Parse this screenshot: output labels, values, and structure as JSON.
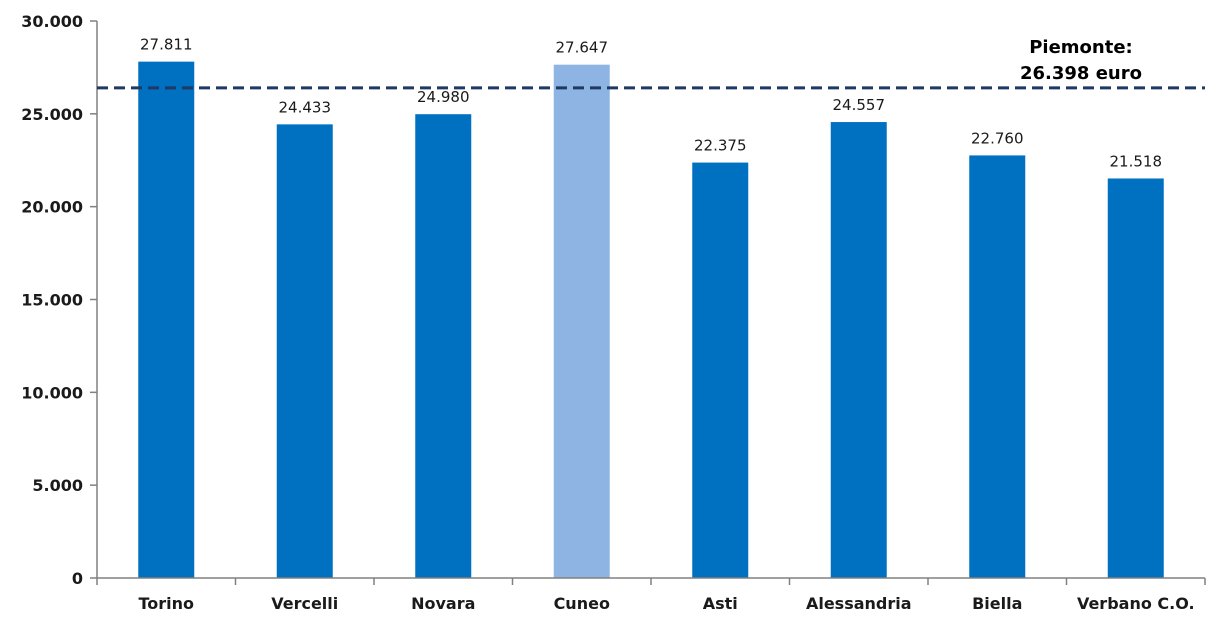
{
  "chart_data": {
    "type": "bar",
    "categories": [
      "Torino",
      "Vercelli",
      "Novara",
      "Cuneo",
      "Asti",
      "Alessandria",
      "Biella",
      "Verbano C.O."
    ],
    "values": [
      27811,
      24433,
      24980,
      27647,
      22375,
      24557,
      22760,
      21518
    ],
    "value_labels": [
      "27.811",
      "24.433",
      "24.980",
      "27.647",
      "22.375",
      "24.557",
      "22.760",
      "21.518"
    ],
    "ylim": [
      0,
      30000
    ],
    "yticks": [
      0,
      5000,
      10000,
      15000,
      20000,
      25000,
      30000
    ],
    "ytick_labels": [
      "0",
      "5.000",
      "10.000",
      "15.000",
      "20.000",
      "25.000",
      "30.000"
    ],
    "highlight_index": 3,
    "colors": {
      "bar": "#0070C0",
      "highlight": "#8DB4E2",
      "reference_line": "#1F3864",
      "axis": "#808080"
    },
    "reference_line": {
      "value": 26398,
      "label_lines": [
        "Piemonte:",
        "26.398 euro"
      ],
      "style": "dashed"
    },
    "grid": false
  }
}
